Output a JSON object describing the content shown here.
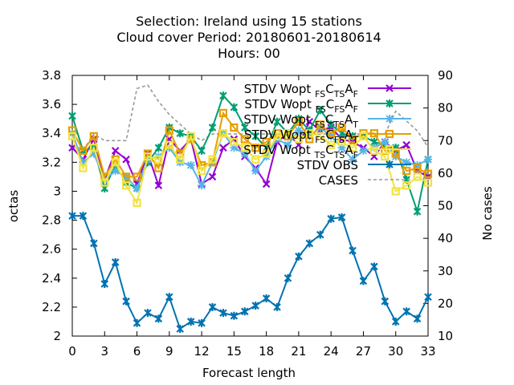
{
  "chart_data": {
    "type": "line",
    "title_lines": [
      "Selection: Ireland using    15 stations",
      "Cloud cover   Period: 20180601-20180614",
      "Hours:  00"
    ],
    "xlabel": "Forecast length",
    "ylabel": "octas",
    "y2label": "No cases",
    "x": [
      0,
      1,
      2,
      3,
      4,
      5,
      6,
      7,
      8,
      9,
      10,
      11,
      12,
      13,
      14,
      15,
      16,
      17,
      18,
      19,
      20,
      21,
      22,
      23,
      24,
      25,
      26,
      27,
      28,
      29,
      30,
      31,
      32,
      33
    ],
    "xlim": [
      0,
      33
    ],
    "ylim": [
      2,
      3.8
    ],
    "y2lim": [
      10,
      90
    ],
    "xticks": [
      "0",
      "3",
      "6",
      "9",
      "12",
      "15",
      "18",
      "21",
      "24",
      "27",
      "30",
      "33"
    ],
    "xtick_values": [
      0,
      3,
      6,
      9,
      12,
      15,
      18,
      21,
      24,
      27,
      30,
      33
    ],
    "yticks": [
      "2",
      "2.2",
      "2.4",
      "2.6",
      "2.8",
      "3",
      "3.2",
      "3.4",
      "3.6",
      "3.8"
    ],
    "ytick_values": [
      2,
      2.2,
      2.4,
      2.6,
      2.8,
      3,
      3.2,
      3.4,
      3.6,
      3.8
    ],
    "y2ticks": [
      "10",
      "20",
      "30",
      "40",
      "50",
      "60",
      "70",
      "80",
      "90"
    ],
    "y2tick_values": [
      10,
      20,
      30,
      40,
      50,
      60,
      70,
      80,
      90
    ],
    "grid": false,
    "legend_position": "top-right",
    "series": [
      {
        "legend_main": "STDV Wopt",
        "legend_sub1": "FS",
        "legend_mid": "C",
        "legend_sub2": "TS",
        "legend_mid2": "A",
        "legend_sub3": "F",
        "color": "#9400d3",
        "marker": "x",
        "axis": "y1",
        "values": [
          3.3,
          3.22,
          3.36,
          3.08,
          3.28,
          3.22,
          3.05,
          3.26,
          3.04,
          3.36,
          3.28,
          3.36,
          3.05,
          3.1,
          3.3,
          3.36,
          3.24,
          3.16,
          3.05,
          3.34,
          3.4,
          3.32,
          3.48,
          3.42,
          3.44,
          3.36,
          3.34,
          3.3,
          3.24,
          3.34,
          3.28,
          3.32,
          3.14,
          3.1
        ]
      },
      {
        "legend_main": "STDV Wopt",
        "legend_sub1": "FS",
        "legend_mid": "C",
        "legend_sub2": "FS",
        "legend_mid2": "A",
        "legend_sub3": "F",
        "color": "#009e73",
        "marker": "asterisk",
        "axis": "y1",
        "values": [
          3.52,
          3.28,
          3.3,
          3.02,
          3.18,
          3.06,
          3.02,
          3.2,
          3.3,
          3.44,
          3.4,
          3.38,
          3.28,
          3.44,
          3.66,
          3.58,
          3.44,
          3.38,
          3.3,
          3.48,
          3.4,
          3.5,
          3.42,
          3.56,
          3.46,
          3.4,
          3.38,
          3.38,
          3.34,
          3.32,
          3.3,
          3.08,
          2.86,
          3.22
        ]
      },
      {
        "legend_main": "STDV Wopt",
        "legend_sub1": "FS",
        "legend_mid": "C",
        "legend_sub2": "TS",
        "legend_mid2": "A",
        "legend_sub3": "T",
        "color": "#56b4e9",
        "marker": "star",
        "axis": "y1",
        "values": [
          3.4,
          3.2,
          3.26,
          3.08,
          3.14,
          3.1,
          3.02,
          3.22,
          3.24,
          3.3,
          3.2,
          3.18,
          3.04,
          3.2,
          3.4,
          3.3,
          3.26,
          3.14,
          3.24,
          3.36,
          3.32,
          3.42,
          3.38,
          3.44,
          3.38,
          3.3,
          3.22,
          3.28,
          3.3,
          3.34,
          3.24,
          3.2,
          3.18,
          3.22
        ]
      },
      {
        "legend_main": "STDV Wopt",
        "legend_sub1": "FS",
        "legend_mid": "C",
        "legend_sub2": "FS",
        "legend_mid2": "A",
        "legend_sub3": "T",
        "color": "#e69f00",
        "marker": "square",
        "axis": "y1",
        "values": [
          3.42,
          3.28,
          3.38,
          3.1,
          3.22,
          3.1,
          3.1,
          3.26,
          3.16,
          3.42,
          3.26,
          3.36,
          3.18,
          3.2,
          3.54,
          3.44,
          3.36,
          3.3,
          3.34,
          3.4,
          3.38,
          3.48,
          3.36,
          3.46,
          3.4,
          3.44,
          3.36,
          3.4,
          3.4,
          3.28,
          3.26,
          3.14,
          3.16,
          3.12
        ]
      },
      {
        "legend_main": "STDV Wopt",
        "legend_sub1": "TS",
        "legend_mid": "C",
        "legend_sub2": "TS",
        "legend_mid2": "A",
        "legend_sub3": "F",
        "color": "#f0e442",
        "marker": "square",
        "axis": "y1",
        "values": [
          3.38,
          3.16,
          3.3,
          3.06,
          3.2,
          3.04,
          2.92,
          3.24,
          3.22,
          3.32,
          3.22,
          3.38,
          3.14,
          3.22,
          3.4,
          3.34,
          3.3,
          3.22,
          3.26,
          3.38,
          3.4,
          3.36,
          3.4,
          3.38,
          3.32,
          3.34,
          3.3,
          3.38,
          3.28,
          3.24,
          3.0,
          3.04,
          3.1,
          3.06
        ]
      },
      {
        "legend_main": "STDV OBS",
        "color": "#0072b2",
        "marker": "asterisk",
        "axis": "y1",
        "values": [
          2.83,
          2.83,
          2.64,
          2.36,
          2.51,
          2.24,
          2.09,
          2.16,
          2.12,
          2.27,
          2.05,
          2.1,
          2.09,
          2.2,
          2.16,
          2.14,
          2.17,
          2.21,
          2.26,
          2.2,
          2.4,
          2.55,
          2.64,
          2.7,
          2.81,
          2.82,
          2.59,
          2.38,
          2.48,
          2.24,
          2.1,
          2.17,
          2.12,
          2.27
        ]
      },
      {
        "legend_main": "CASES",
        "color": "#999999",
        "marker": "none",
        "dashed": true,
        "axis": "y2",
        "values": [
          68,
          67,
          72,
          70,
          70,
          70,
          86,
          87,
          82,
          78,
          75,
          72,
          70,
          72,
          72,
          72,
          72,
          72,
          72,
          72,
          72,
          72,
          72,
          72,
          72,
          72,
          72,
          72,
          72,
          72,
          79,
          76,
          73,
          68
        ]
      }
    ]
  }
}
